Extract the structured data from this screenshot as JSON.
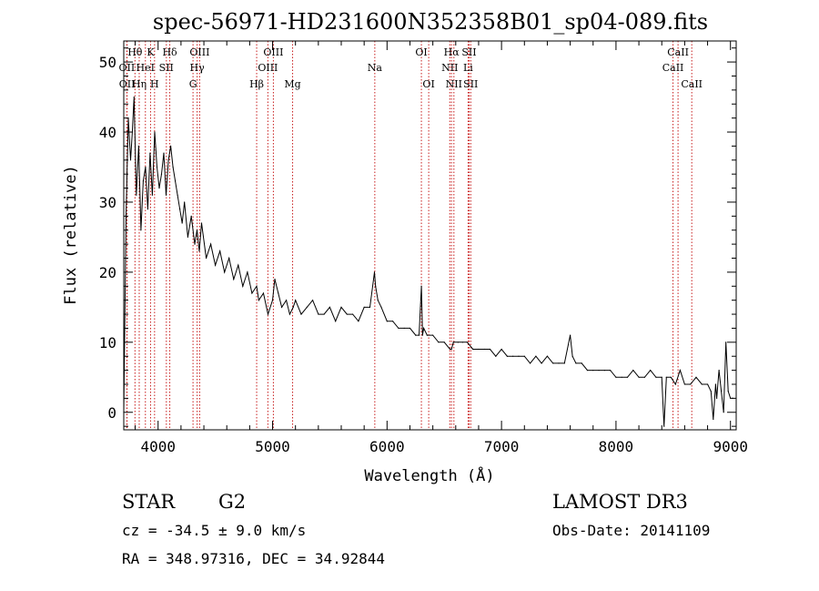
{
  "chart_data": {
    "type": "line",
    "title": "spec-56971-HD231600N352358B01_sp04-089.fits",
    "xlabel": "Wavelength (Å)",
    "ylabel": "Flux (relative)",
    "xlim": [
      3700,
      9050
    ],
    "ylim": [
      -2.5,
      53
    ],
    "xticks": [
      4000,
      5000,
      6000,
      7000,
      8000,
      9000
    ],
    "xtick_labels": [
      "4000",
      "5000",
      "6000",
      "7000",
      "8000",
      "9000"
    ],
    "yticks": [
      0,
      10,
      20,
      30,
      40,
      50
    ],
    "ytick_labels": [
      "0",
      "10",
      "20",
      "30",
      "40",
      "50"
    ],
    "grid": false,
    "series": [
      {
        "name": "spectrum",
        "x": [
          3700,
          3720,
          3740,
          3760,
          3775,
          3790,
          3810,
          3830,
          3850,
          3870,
          3890,
          3910,
          3930,
          3950,
          3970,
          3990,
          4010,
          4030,
          4050,
          4070,
          4090,
          4110,
          4130,
          4150,
          4170,
          4190,
          4210,
          4230,
          4260,
          4290,
          4320,
          4340,
          4360,
          4380,
          4420,
          4460,
          4500,
          4540,
          4580,
          4620,
          4660,
          4700,
          4740,
          4780,
          4820,
          4861,
          4880,
          4920,
          4960,
          5000,
          5020,
          5050,
          5080,
          5120,
          5150,
          5180,
          5200,
          5250,
          5300,
          5350,
          5400,
          5450,
          5500,
          5550,
          5600,
          5650,
          5700,
          5750,
          5800,
          5850,
          5890,
          5900,
          5920,
          5950,
          6000,
          6050,
          6100,
          6150,
          6200,
          6250,
          6280,
          6300,
          6310,
          6320,
          6350,
          6400,
          6450,
          6500,
          6550,
          6563,
          6580,
          6620,
          6660,
          6700,
          6750,
          6800,
          6850,
          6900,
          6950,
          7000,
          7050,
          7100,
          7150,
          7200,
          7250,
          7300,
          7350,
          7400,
          7450,
          7500,
          7550,
          7600,
          7620,
          7650,
          7700,
          7750,
          7800,
          7850,
          7900,
          7950,
          8000,
          8050,
          8100,
          8150,
          8200,
          8250,
          8300,
          8350,
          8400,
          8420,
          8440,
          8480,
          8520,
          8560,
          8600,
          8650,
          8700,
          8750,
          8800,
          8830,
          8850,
          8870,
          8880,
          8900,
          8920,
          8940,
          8960,
          8980,
          9000,
          9020
        ],
        "y": [
          0,
          28,
          42,
          36,
          40,
          45,
          31,
          38,
          26,
          33,
          35,
          29,
          37,
          31,
          40,
          35,
          32,
          34,
          37,
          31,
          36,
          38,
          35,
          33,
          31,
          29,
          27,
          30,
          25,
          28,
          24,
          26,
          23,
          27,
          22,
          24,
          21,
          23,
          20,
          22,
          19,
          21,
          18,
          20,
          17,
          18,
          16,
          17,
          14,
          16,
          19,
          17,
          15,
          16,
          14,
          15,
          16,
          14,
          15,
          16,
          14,
          14,
          15,
          13,
          15,
          14,
          14,
          13,
          15,
          15,
          20,
          18,
          16,
          15,
          13,
          13,
          12,
          12,
          12,
          11,
          11,
          18,
          11,
          12,
          11,
          11,
          10,
          10,
          9,
          9,
          10,
          10,
          10,
          10,
          9,
          9,
          9,
          9,
          8,
          9,
          8,
          8,
          8,
          8,
          7,
          8,
          7,
          8,
          7,
          7,
          7,
          11,
          8,
          7,
          7,
          6,
          6,
          6,
          6,
          6,
          5,
          5,
          5,
          6,
          5,
          5,
          6,
          5,
          5,
          -2,
          5,
          5,
          4,
          6,
          4,
          4,
          5,
          4,
          4,
          3,
          -1,
          4,
          2,
          6,
          3,
          0,
          10,
          3,
          2,
          2
        ]
      }
    ],
    "lines": [
      {
        "label": "Hθ",
        "x": 3798,
        "row": 1
      },
      {
        "label": "OII",
        "x": 3727,
        "row": 2
      },
      {
        "label": "OII",
        "x": 3729,
        "row": 3
      },
      {
        "label": "Hη",
        "x": 3835,
        "row": 3
      },
      {
        "label": "K",
        "x": 3934,
        "row": 1
      },
      {
        "label": "H",
        "x": 3969,
        "row": 3
      },
      {
        "label": "HeI",
        "x": 3889,
        "row": 2
      },
      {
        "label": "SII",
        "x": 4072,
        "row": 2
      },
      {
        "label": "Hδ",
        "x": 4102,
        "row": 1
      },
      {
        "label": "OIII",
        "x": 4363,
        "row": 1
      },
      {
        "label": "Hγ",
        "x": 4341,
        "row": 2
      },
      {
        "label": "G",
        "x": 4305,
        "row": 3
      },
      {
        "label": "Hβ",
        "x": 4861,
        "row": 3
      },
      {
        "label": "OIII",
        "x": 5007,
        "row": 1
      },
      {
        "label": "OIII",
        "x": 4959,
        "row": 2
      },
      {
        "label": "Mg",
        "x": 5175,
        "row": 3
      },
      {
        "label": "Na",
        "x": 5893,
        "row": 2
      },
      {
        "label": "OI",
        "x": 6300,
        "row": 1
      },
      {
        "label": "OI",
        "x": 6364,
        "row": 3
      },
      {
        "label": "Hα",
        "x": 6563,
        "row": 1
      },
      {
        "label": "NII",
        "x": 6548,
        "row": 2
      },
      {
        "label": "NII",
        "x": 6584,
        "row": 3
      },
      {
        "label": "SII",
        "x": 6717,
        "row": 1
      },
      {
        "label": "Li",
        "x": 6708,
        "row": 2
      },
      {
        "label": "SII",
        "x": 6731,
        "row": 3
      },
      {
        "label": "CaII",
        "x": 8542,
        "row": 1
      },
      {
        "label": "CaII",
        "x": 8498,
        "row": 2
      },
      {
        "label": "CaII",
        "x": 8662,
        "row": 3
      }
    ],
    "annotations": {
      "object_type": "STAR",
      "subclass": "G2",
      "survey": "LAMOST DR3",
      "redshift": "cz = -34.5 ± 9.0 km/s",
      "obs_date": "Obs-Date: 20141109",
      "coords": "RA = 348.97316, DEC =  34.92844"
    }
  }
}
